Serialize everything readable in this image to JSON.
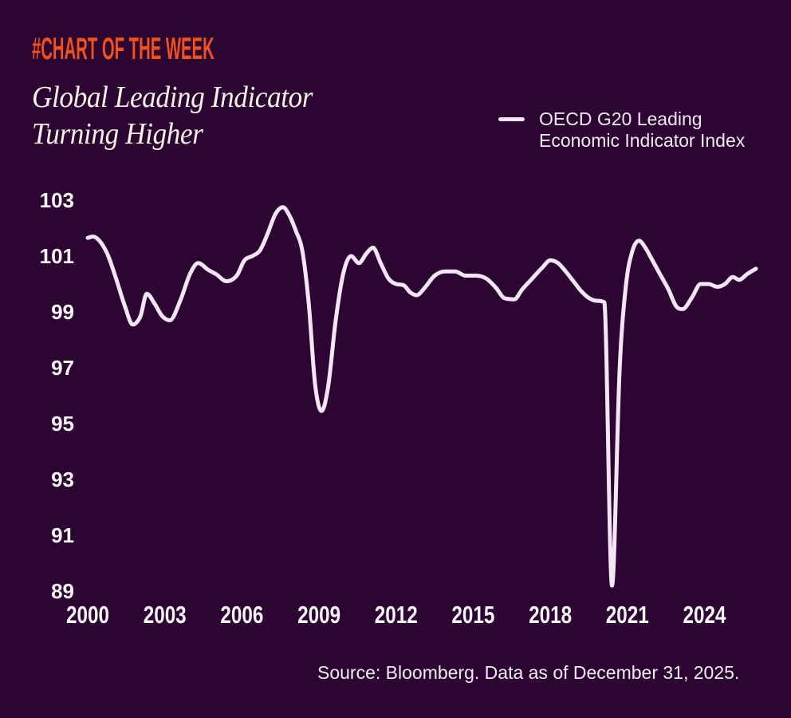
{
  "header": {
    "badge": "#CHART OF THE WEEK"
  },
  "title": {
    "line1": "Global Leading Indicator",
    "line2": "Turning Higher"
  },
  "legend": {
    "line1": "OECD G20 Leading",
    "line2": "Economic Indicator Index"
  },
  "source": {
    "text": "Source: Bloomberg. Data as of December 31, 2025."
  },
  "colors": {
    "background": "#2d0533",
    "accent_orange": "#f1511c",
    "title_cream": "#f8f1e6",
    "line": "#f3e6f7",
    "axis_text": "#faf6fa"
  },
  "chart_data": {
    "type": "line",
    "title": "Global Leading Indicator Turning Higher",
    "xlabel": "",
    "ylabel": "",
    "xlim": [
      2000,
      2026
    ],
    "ylim": [
      89,
      103
    ],
    "grid": false,
    "legend_position": "top-right",
    "x_ticks": [
      2000,
      2003,
      2006,
      2009,
      2012,
      2015,
      2018,
      2021,
      2024
    ],
    "y_ticks": [
      103,
      101,
      99,
      97,
      95,
      93,
      91,
      89
    ],
    "series": [
      {
        "name": "OECD G20 Leading Economic Indicator Index",
        "color": "#f3e6f7",
        "x": [
          2000.0,
          2000.2,
          2000.5,
          2000.8,
          2001.1,
          2001.45,
          2001.75,
          2002.05,
          2002.3,
          2002.6,
          2002.9,
          2003.2,
          2003.6,
          2004.0,
          2004.3,
          2004.7,
          2005.0,
          2005.4,
          2005.8,
          2006.1,
          2006.4,
          2006.7,
          2007.0,
          2007.3,
          2007.6,
          2007.85,
          2008.1,
          2008.35,
          2008.6,
          2008.85,
          2009.1,
          2009.35,
          2009.65,
          2009.95,
          2010.25,
          2010.55,
          2010.85,
          2011.1,
          2011.4,
          2011.7,
          2012.0,
          2012.3,
          2012.55,
          2012.8,
          2013.1,
          2013.5,
          2013.9,
          2014.3,
          2014.7,
          2015.1,
          2015.5,
          2015.9,
          2016.2,
          2016.6,
          2016.9,
          2017.3,
          2017.7,
          2018.0,
          2018.3,
          2018.6,
          2018.9,
          2019.2,
          2019.5,
          2019.8,
          2020.1,
          2020.4,
          2020.7,
          2020.95,
          2021.2,
          2021.45,
          2021.7,
          2022.0,
          2022.3,
          2022.6,
          2022.9,
          2023.15,
          2023.5,
          2023.85,
          2024.15,
          2024.5,
          2024.8,
          2025.1,
          2025.35,
          2025.65,
          2026.0
        ],
        "y": [
          101.65,
          101.7,
          101.5,
          101.0,
          100.2,
          99.2,
          98.55,
          98.85,
          99.65,
          99.3,
          98.85,
          98.7,
          99.4,
          100.4,
          100.75,
          100.5,
          100.35,
          100.1,
          100.3,
          100.85,
          101.0,
          101.2,
          101.8,
          102.5,
          102.75,
          102.45,
          101.9,
          101.2,
          99.3,
          96.4,
          95.45,
          96.3,
          98.7,
          100.4,
          101.0,
          100.75,
          101.1,
          101.3,
          100.75,
          100.2,
          100.0,
          99.95,
          99.7,
          99.6,
          99.85,
          100.3,
          100.45,
          100.45,
          100.3,
          100.3,
          100.2,
          99.85,
          99.5,
          99.45,
          99.8,
          100.2,
          100.6,
          100.85,
          100.75,
          100.45,
          100.1,
          99.75,
          99.5,
          99.4,
          99.35,
          89.2,
          97.0,
          100.0,
          101.2,
          101.55,
          101.3,
          100.8,
          100.3,
          99.8,
          99.2,
          99.1,
          99.5,
          100.0,
          100.0,
          99.9,
          100.0,
          100.25,
          100.15,
          100.35,
          100.55
        ]
      }
    ]
  }
}
